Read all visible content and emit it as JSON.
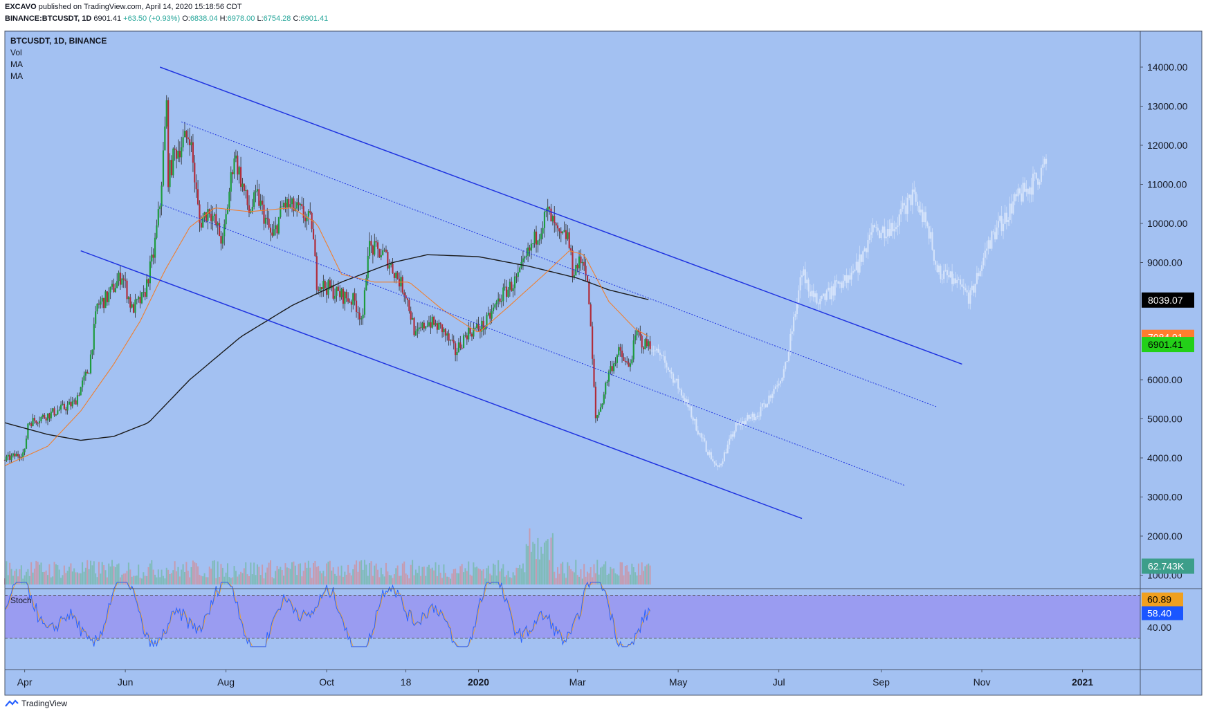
{
  "header": {
    "publisher": "EXCAVO",
    "published_line": "published on TradingView.com, April 14, 2020 15:18:56 CDT",
    "symbol_line": "BINANCE:BTCUSDT, 1D",
    "last": "6901.41",
    "change": "+63.50 (+0.93%)",
    "open_label": "O:",
    "open": "6838.04",
    "high_label": "H:",
    "high": "6978.00",
    "low_label": "L:",
    "low": "6754.28",
    "close_label": "C:",
    "close": "6901.41"
  },
  "legend": {
    "title": "BTCUSDT, 1D, BINANCE",
    "items": [
      "Vol",
      "MA",
      "MA"
    ]
  },
  "stoch_label": "Stoch",
  "footer": {
    "brand": "TradingView",
    "logo_icon": "tradingview-logo-icon"
  },
  "colors": {
    "background": "#a3c1f2",
    "up": "#1e9b3e",
    "down": "#b02c3a",
    "ghost": "#d9e6fb",
    "channel": "#1f33e0",
    "ma_fast": "#f07f2e",
    "ma_slow": "#1a1a1a",
    "stoch_band": "#9a9cf1",
    "stoch_k": "#2962ff",
    "stoch_d": "#e8a13a"
  },
  "chart_data": [
    {
      "type": "candlestick",
      "title": "BTCUSDT, 1D, BINANCE",
      "x_ticks": [
        "Apr",
        "Jun",
        "Aug",
        "Oct",
        "18",
        "2020",
        "Mar",
        "May",
        "Jul",
        "Sep",
        "Nov",
        "2021"
      ],
      "y_ticks": [
        "14000.00",
        "13000.00",
        "12000.00",
        "11000.00",
        "10000.00",
        "9000.00",
        "6000.00",
        "5000.00",
        "4000.00",
        "3000.00",
        "2000.00",
        "1000.00"
      ],
      "ylim": [
        1000,
        14000
      ],
      "grid": false,
      "price_labels": {
        "ma_slow": "8039.07",
        "ma_fast": "7084.91",
        "last": "6901.41",
        "volume": "62.743K"
      },
      "price_path": [
        [
          "2019-03-20",
          3950
        ],
        [
          "2019-04-01",
          4150
        ],
        [
          "2019-04-03",
          4900
        ],
        [
          "2019-04-15",
          5100
        ],
        [
          "2019-05-01",
          5400
        ],
        [
          "2019-05-10",
          6300
        ],
        [
          "2019-05-15",
          7900
        ],
        [
          "2019-05-21",
          8100
        ],
        [
          "2019-05-30",
          8700
        ],
        [
          "2019-06-05",
          7800
        ],
        [
          "2019-06-12",
          8100
        ],
        [
          "2019-06-18",
          9200
        ],
        [
          "2019-06-22",
          10500
        ],
        [
          "2019-06-26",
          13000
        ],
        [
          "2019-06-27",
          11200
        ],
        [
          "2019-07-01",
          11800
        ],
        [
          "2019-07-10",
          12300
        ],
        [
          "2019-07-16",
          10000
        ],
        [
          "2019-07-22",
          10400
        ],
        [
          "2019-07-30",
          9500
        ],
        [
          "2019-08-06",
          11800
        ],
        [
          "2019-08-15",
          10300
        ],
        [
          "2019-08-20",
          10700
        ],
        [
          "2019-08-29",
          9600
        ],
        [
          "2019-09-05",
          10500
        ],
        [
          "2019-09-15",
          10300
        ],
        [
          "2019-09-22",
          10000
        ],
        [
          "2019-09-25",
          8500
        ],
        [
          "2019-10-08",
          8200
        ],
        [
          "2019-10-18",
          8000
        ],
        [
          "2019-10-23",
          7500
        ],
        [
          "2019-10-26",
          9400
        ],
        [
          "2019-11-05",
          9200
        ],
        [
          "2019-11-12",
          8700
        ],
        [
          "2019-11-18",
          8200
        ],
        [
          "2019-11-24",
          7100
        ],
        [
          "2019-12-01",
          7500
        ],
        [
          "2019-12-10",
          7300
        ],
        [
          "2019-12-18",
          6700
        ],
        [
          "2019-12-25",
          7200
        ],
        [
          "2020-01-05",
          7400
        ],
        [
          "2020-01-14",
          8100
        ],
        [
          "2020-01-25",
          8600
        ],
        [
          "2020-02-01",
          9300
        ],
        [
          "2020-02-12",
          10300
        ],
        [
          "2020-02-19",
          9600
        ],
        [
          "2020-02-24",
          9700
        ],
        [
          "2020-02-27",
          8800
        ],
        [
          "2020-03-05",
          9100
        ],
        [
          "2020-03-08",
          8000
        ],
        [
          "2020-03-12",
          5000
        ],
        [
          "2020-03-15",
          5300
        ],
        [
          "2020-03-20",
          6200
        ],
        [
          "2020-03-26",
          6700
        ],
        [
          "2020-04-01",
          6300
        ],
        [
          "2020-04-06",
          7200
        ],
        [
          "2020-04-10",
          6900
        ],
        [
          "2020-04-14",
          6901
        ]
      ],
      "projection_path": [
        [
          "2020-04-14",
          6900
        ],
        [
          "2020-04-25",
          6300
        ],
        [
          "2020-05-05",
          5500
        ],
        [
          "2020-05-15",
          4500
        ],
        [
          "2020-05-25",
          3700
        ],
        [
          "2020-06-05",
          4800
        ],
        [
          "2020-06-20",
          5200
        ],
        [
          "2020-07-05",
          6300
        ],
        [
          "2020-07-15",
          8700
        ],
        [
          "2020-07-25",
          7900
        ],
        [
          "2020-08-05",
          8400
        ],
        [
          "2020-08-15",
          8600
        ],
        [
          "2020-08-25",
          9700
        ],
        [
          "2020-09-10",
          10000
        ],
        [
          "2020-09-20",
          10700
        ],
        [
          "2020-09-30",
          9800
        ],
        [
          "2020-10-05",
          8800
        ],
        [
          "2020-10-15",
          8500
        ],
        [
          "2020-10-25",
          8100
        ],
        [
          "2020-11-05",
          9500
        ],
        [
          "2020-11-20",
          10500
        ],
        [
          "2020-12-01",
          11000
        ],
        [
          "2020-12-10",
          11500
        ]
      ],
      "ma_fast_path": [
        [
          "2019-03-20",
          3800
        ],
        [
          "2019-04-15",
          4300
        ],
        [
          "2019-05-05",
          5200
        ],
        [
          "2019-05-25",
          6400
        ],
        [
          "2019-06-10",
          7500
        ],
        [
          "2019-06-25",
          8800
        ],
        [
          "2019-07-10",
          9900
        ],
        [
          "2019-07-25",
          10400
        ],
        [
          "2019-08-15",
          10300
        ],
        [
          "2019-09-10",
          10400
        ],
        [
          "2019-09-25",
          10000
        ],
        [
          "2019-10-10",
          8700
        ],
        [
          "2019-10-30",
          8500
        ],
        [
          "2019-11-20",
          8500
        ],
        [
          "2019-12-10",
          7800
        ],
        [
          "2020-01-01",
          7200
        ],
        [
          "2020-01-20",
          7900
        ],
        [
          "2020-02-10",
          8700
        ],
        [
          "2020-02-25",
          9300
        ],
        [
          "2020-03-05",
          9200
        ],
        [
          "2020-03-20",
          8000
        ],
        [
          "2020-04-05",
          7300
        ],
        [
          "2020-04-14",
          7085
        ]
      ],
      "ma_slow_path": [
        [
          "2019-03-20",
          4900
        ],
        [
          "2019-04-15",
          4600
        ],
        [
          "2019-05-05",
          4450
        ],
        [
          "2019-05-25",
          4550
        ],
        [
          "2019-06-15",
          4900
        ],
        [
          "2019-07-10",
          6000
        ],
        [
          "2019-08-10",
          7100
        ],
        [
          "2019-09-10",
          7900
        ],
        [
          "2019-10-10",
          8500
        ],
        [
          "2019-11-10",
          9000
        ],
        [
          "2019-12-01",
          9200
        ],
        [
          "2020-01-01",
          9150
        ],
        [
          "2020-02-01",
          8900
        ],
        [
          "2020-03-01",
          8600
        ],
        [
          "2020-03-20",
          8300
        ],
        [
          "2020-04-14",
          8039
        ]
      ],
      "channel_lines": [
        {
          "style": "solid",
          "from": [
            "2019-06-22",
            14000
          ],
          "to": [
            "2020-10-20",
            6400
          ]
        },
        {
          "style": "dotted",
          "from": [
            "2019-07-05",
            12600
          ],
          "to": [
            "2020-10-05",
            5300
          ]
        },
        {
          "style": "dotted",
          "from": [
            "2019-06-22",
            10500
          ],
          "to": [
            "2020-09-15",
            3300
          ]
        },
        {
          "style": "solid",
          "from": [
            "2019-05-05",
            9300
          ],
          "to": [
            "2020-07-15",
            2450
          ]
        }
      ]
    },
    {
      "type": "line",
      "title": "Stoch",
      "ylim": [
        20,
        80
      ],
      "y_ticks": [
        "40.00"
      ],
      "bands": [
        70,
        30
      ],
      "price_labels": {
        "k": "60.89",
        "d": "58.40"
      }
    }
  ]
}
